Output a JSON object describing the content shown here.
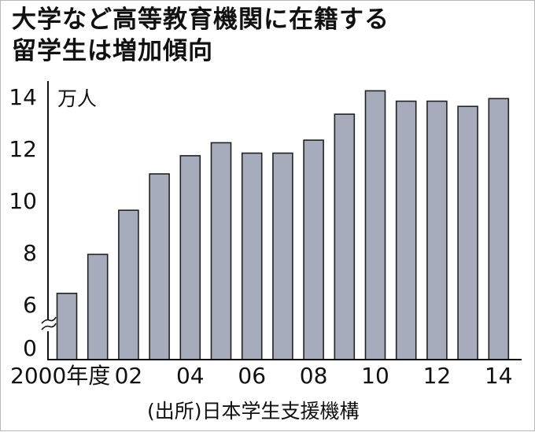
{
  "title_lines": [
    "大学など高等教育機関に在籍する",
    "留学生は増加傾向"
  ],
  "unit_label": "万人",
  "source": "(出所)日本学生支援機構",
  "colors": {
    "bar_fill": "#a6acbb",
    "bar_stroke": "#222222",
    "axis": "#111111"
  },
  "chart_data": {
    "type": "bar",
    "title": "大学など高等教育機関に在籍する留学生は増加傾向",
    "ylabel": "万人",
    "xlabel": "",
    "categories": [
      "2000",
      "2001",
      "2002",
      "2003",
      "2004",
      "2005",
      "2006",
      "2007",
      "2008",
      "2009",
      "2010",
      "2011",
      "2012",
      "2013",
      "2014"
    ],
    "values": [
      6.4,
      7.9,
      9.6,
      11.0,
      11.7,
      12.2,
      11.8,
      11.8,
      12.3,
      13.3,
      14.2,
      13.8,
      13.8,
      13.6,
      13.9
    ],
    "x_tick_labels": [
      {
        "index": 0,
        "label": "2000年度"
      },
      {
        "index": 2,
        "label": "02"
      },
      {
        "index": 4,
        "label": "04"
      },
      {
        "index": 6,
        "label": "06"
      },
      {
        "index": 8,
        "label": "08"
      },
      {
        "index": 10,
        "label": "10"
      },
      {
        "index": 12,
        "label": "12"
      },
      {
        "index": 14,
        "label": "14"
      }
    ],
    "y_ticks": [
      "14",
      "12",
      "10",
      "8",
      "6",
      "0"
    ],
    "ylim": [
      5,
      14.5
    ],
    "y_axis_break": true,
    "grid": false,
    "legend": "none"
  }
}
